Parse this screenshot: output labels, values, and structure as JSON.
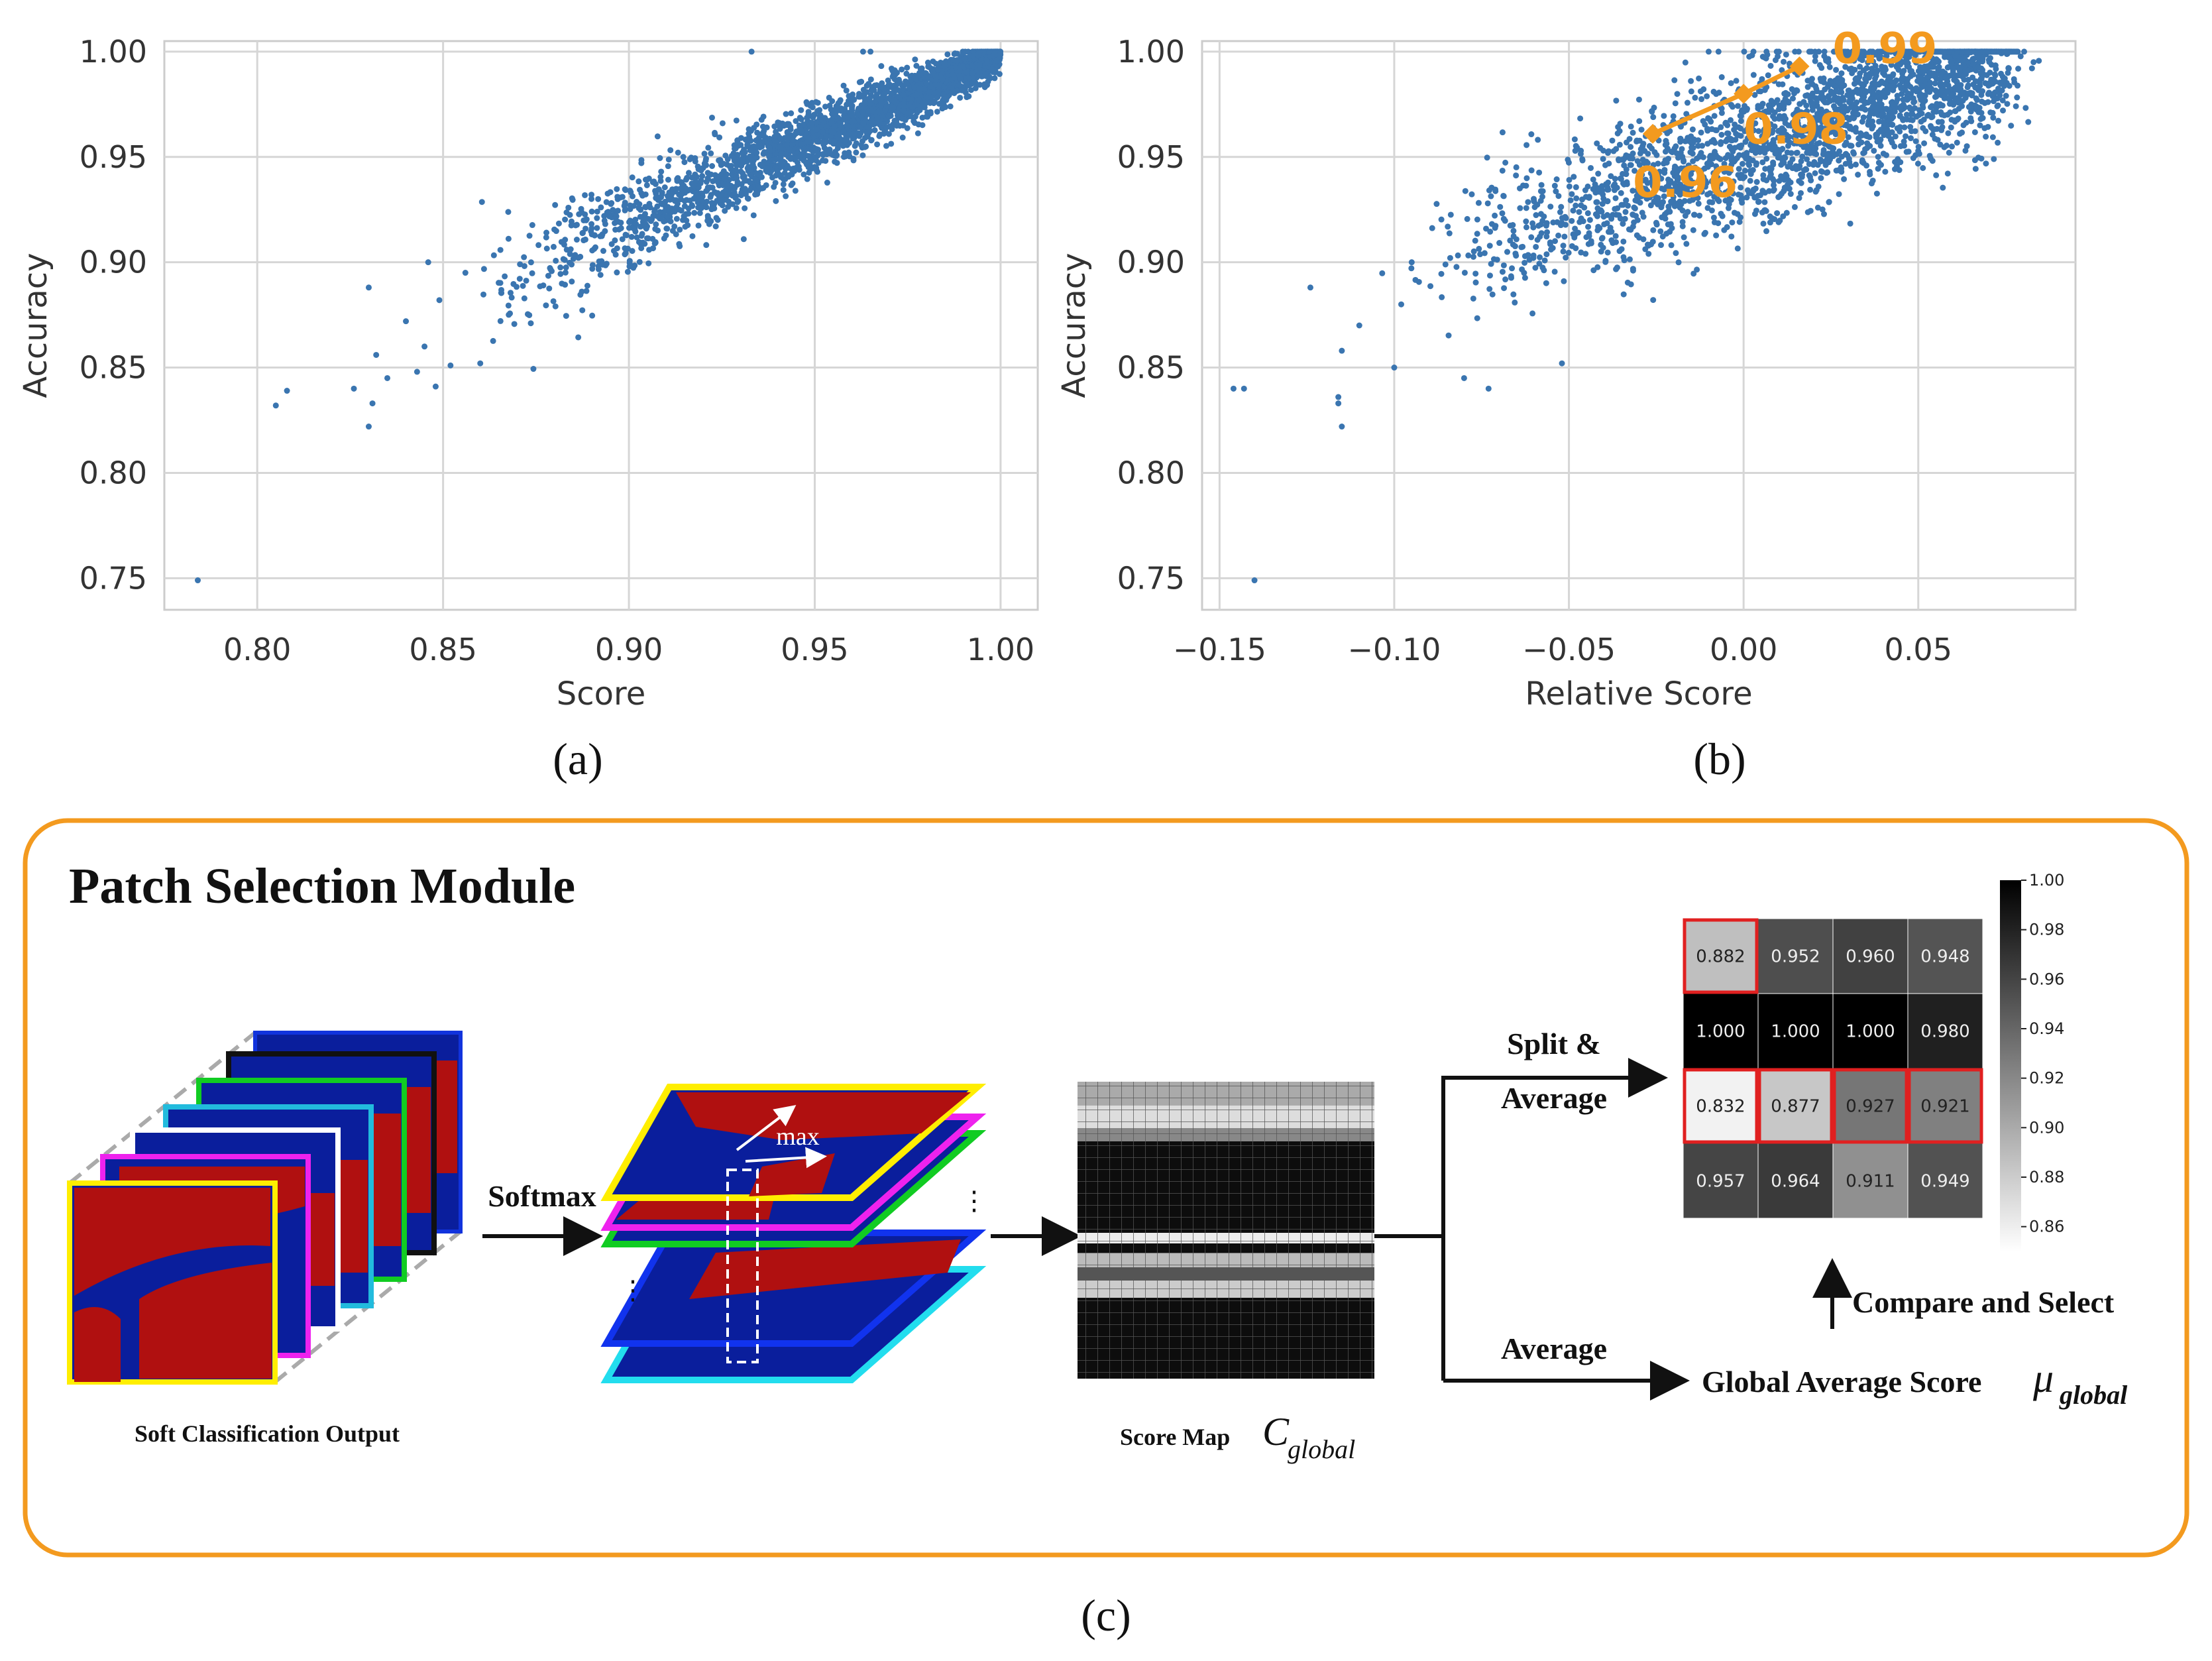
{
  "chart_data": [
    {
      "type": "scatter",
      "panel": "(a)",
      "xlabel": "Score",
      "ylabel": "Accuracy",
      "xlim": [
        0.775,
        1.01
      ],
      "ylim": [
        0.735,
        1.005
      ],
      "xticks": [
        "0.80",
        "0.85",
        "0.90",
        "0.95",
        "1.00"
      ],
      "yticks": [
        "1.00",
        "0.95",
        "0.90",
        "0.85",
        "0.80",
        "0.75"
      ],
      "color": "#3a75b0",
      "grid": true,
      "points_outliers": [
        [
          0.784,
          0.749
        ],
        [
          0.805,
          0.832
        ],
        [
          0.808,
          0.839
        ],
        [
          0.826,
          0.84
        ],
        [
          0.83,
          0.822
        ],
        [
          0.831,
          0.833
        ],
        [
          0.832,
          0.856
        ],
        [
          0.83,
          0.888
        ],
        [
          0.835,
          0.845
        ],
        [
          0.84,
          0.872
        ],
        [
          0.843,
          0.848
        ],
        [
          0.845,
          0.86
        ],
        [
          0.846,
          0.9
        ],
        [
          0.848,
          0.841
        ],
        [
          0.849,
          0.882
        ],
        [
          0.852,
          0.851
        ],
        [
          0.856,
          0.895
        ],
        [
          0.86,
          0.852
        ],
        [
          0.933,
          1.0
        ],
        [
          0.963,
          1.0
        ],
        [
          0.965,
          1.0
        ]
      ],
      "cloud": {
        "count": 2600,
        "x_range": [
          0.855,
          1.0
        ],
        "y_at_x_min": 0.885,
        "y_at_x_max": 1.0
      }
    },
    {
      "type": "scatter",
      "panel": "(b)",
      "xlabel": "Relative Score",
      "ylabel": "Accuracy",
      "xlim": [
        -0.155,
        0.095
      ],
      "ylim": [
        0.735,
        1.005
      ],
      "xticks": [
        "-0.15",
        "-0.10",
        "-0.05",
        "0.00",
        "0.05"
      ],
      "yticks": [
        "1.00",
        "0.95",
        "0.90",
        "0.85",
        "0.80",
        "0.75"
      ],
      "color": "#3a75b0",
      "grid": true,
      "points_outliers": [
        [
          -0.14,
          0.749
        ],
        [
          -0.146,
          0.84
        ],
        [
          -0.143,
          0.84
        ],
        [
          -0.115,
          0.822
        ],
        [
          -0.116,
          0.833
        ],
        [
          -0.116,
          0.836
        ],
        [
          -0.115,
          0.858
        ],
        [
          -0.124,
          0.888
        ],
        [
          -0.11,
          0.87
        ],
        [
          -0.1,
          0.85
        ],
        [
          -0.095,
          0.9
        ],
        [
          -0.08,
          0.845
        ],
        [
          -0.073,
          0.84
        ],
        [
          -0.052,
          0.852
        ],
        [
          -0.098,
          0.88
        ],
        [
          0.078,
          1.0
        ],
        [
          0.083,
          0.995
        ],
        [
          0.07,
          1.0
        ],
        [
          -0.01,
          1.0
        ]
      ],
      "cloud": {
        "count": 2600,
        "x_range": [
          -0.095,
          0.075
        ],
        "y_center_at_x_min": 0.895,
        "y_center_at_x_max": 1.0
      },
      "annotation_line": {
        "color": "#f39a1f",
        "points": [
          [
            -0.026,
            0.961
          ],
          [
            0.0,
            0.98
          ],
          [
            0.016,
            0.993
          ]
        ],
        "labels": [
          "0.96",
          "0.98",
          "0.99"
        ]
      }
    },
    {
      "type": "heatmap",
      "panel": "(c) inset",
      "rows": [
        [
          0.882,
          0.952,
          0.96,
          0.948
        ],
        [
          1.0,
          1.0,
          1.0,
          0.98
        ],
        [
          0.832,
          0.877,
          0.927,
          0.921
        ],
        [
          0.957,
          0.964,
          0.911,
          0.949
        ]
      ],
      "cell_labels": [
        [
          "0.882",
          "0.952",
          "0.960",
          "0.948"
        ],
        [
          "1.000",
          "1.000",
          "1.000",
          "0.980"
        ],
        [
          "0.832",
          "0.877",
          "0.927",
          "0.921"
        ],
        [
          "0.957",
          "0.964",
          "0.911",
          "0.949"
        ]
      ],
      "selected": [
        [
          0,
          0
        ],
        [
          2,
          0
        ],
        [
          2,
          1
        ],
        [
          2,
          2
        ],
        [
          2,
          3
        ]
      ],
      "colorbar": {
        "range": [
          0.85,
          1.0
        ],
        "ticks": [
          "1.00",
          "0.98",
          "0.96",
          "0.94",
          "0.92",
          "0.90",
          "0.88",
          "0.86"
        ]
      }
    }
  ],
  "captions": {
    "a": "(a)",
    "b": "(b)",
    "c": "(c)"
  },
  "diagram": {
    "title": "Patch Selection Module",
    "softmax": "Softmax",
    "max": "max",
    "soft_output": "Soft Classification Output",
    "score_map": "Score Map",
    "score_map_symbol": "C",
    "score_map_sub": "global",
    "split_average_1": "Split &",
    "split_average_2": "Average",
    "average": "Average",
    "global_avg": "Global Average Score",
    "mu_symbol": "μ",
    "mu_sub": "global",
    "compare": "Compare and Select",
    "border_color": "#f39a1f"
  }
}
